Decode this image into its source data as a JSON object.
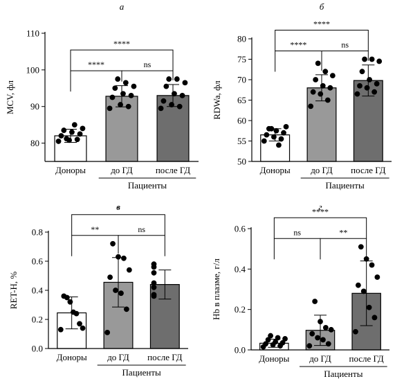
{
  "chart_data": [
    {
      "type": "bar",
      "panel_label": "а",
      "ylabel": "MCV, фл",
      "ylim": [
        75,
        110
      ],
      "yticks": [
        80,
        90,
        100,
        110
      ],
      "categories": [
        "Доноры",
        "до ГД",
        "после ГД"
      ],
      "group_label": "Пациенты",
      "values": [
        82,
        92.8,
        93
      ],
      "error": [
        1.8,
        2.9,
        3.0
      ],
      "points": [
        [
          80.5,
          81.0,
          80.8,
          82.0,
          82.5,
          83.0,
          83.5,
          84.0,
          85.0,
          81.2
        ],
        [
          89.5,
          90.0,
          90.5,
          92.5,
          93.0,
          93.5,
          95.0,
          95.5,
          96.5,
          97.5
        ],
        [
          89.5,
          90.0,
          90.5,
          91.5,
          93.0,
          93.5,
          95.5,
          96.5,
          97.5,
          97.5
        ]
      ],
      "bar_colors": [
        "#ffffff",
        "#999999",
        "#6e6e6e"
      ],
      "significance": [
        {
          "from": 0,
          "to": 2,
          "label": "****"
        },
        {
          "from": 0,
          "to": 1,
          "label": "****"
        },
        {
          "from": 1,
          "to": 2,
          "label": "ns"
        }
      ]
    },
    {
      "type": "bar",
      "panel_label": "б",
      "ylabel": "RDWa, фл",
      "ylim": [
        50,
        80
      ],
      "yticks": [
        50,
        55,
        60,
        65,
        70,
        75,
        80
      ],
      "categories": [
        "Доноры",
        "до ГД",
        "после ГД"
      ],
      "group_label": "Пациенты",
      "values": [
        56.5,
        68,
        69.8
      ],
      "error": [
        1.5,
        3.2,
        3.8
      ],
      "points": [
        [
          55.0,
          55.5,
          56.0,
          56.5,
          57.0,
          57.5,
          58.0,
          58.5,
          54.0,
          58.0
        ],
        [
          63.5,
          65.0,
          66.5,
          67.0,
          68.0,
          68.5,
          70.0,
          71.0,
          72.0,
          74.0
        ],
        [
          66.5,
          67.0,
          68.0,
          68.5,
          69.0,
          70.0,
          72.0,
          74.5,
          75.0,
          75.0
        ]
      ],
      "bar_colors": [
        "#ffffff",
        "#999999",
        "#6e6e6e"
      ],
      "significance": [
        {
          "from": 0,
          "to": 2,
          "label": "****"
        },
        {
          "from": 0,
          "to": 1,
          "label": "****"
        },
        {
          "from": 1,
          "to": 2,
          "label": "ns"
        }
      ]
    },
    {
      "type": "bar",
      "panel_label": "в",
      "ylabel": "RET-H, %",
      "ylim": [
        0,
        0.8
      ],
      "yticks": [
        0.0,
        0.2,
        0.4,
        0.6,
        0.8
      ],
      "categories": [
        "Доноры",
        "до ГД",
        "после ГД"
      ],
      "group_label": "Пациенты",
      "values": [
        0.245,
        0.455,
        0.44
      ],
      "error": [
        0.11,
        0.17,
        0.1
      ],
      "points": [
        [
          0.13,
          0.14,
          0.17,
          0.24,
          0.25,
          0.32,
          0.35,
          0.36
        ],
        [
          0.11,
          0.27,
          0.38,
          0.4,
          0.49,
          0.54,
          0.62,
          0.63,
          0.72
        ],
        [
          0.36,
          0.37,
          0.42,
          0.45,
          0.52,
          0.56,
          0.58
        ]
      ],
      "bar_colors": [
        "#ffffff",
        "#999999",
        "#6e6e6e"
      ],
      "significance": [
        {
          "from": 0,
          "to": 2,
          "label": "*"
        },
        {
          "from": 0,
          "to": 1,
          "label": "**"
        },
        {
          "from": 1,
          "to": 2,
          "label": "ns"
        }
      ]
    },
    {
      "type": "bar",
      "panel_label": "г",
      "ylabel": "Hb в плазме, г/л",
      "ylim": [
        0,
        0.6
      ],
      "yticks": [
        0.0,
        0.2,
        0.4,
        0.6
      ],
      "categories": [
        "Доноры",
        "до ГД",
        "после ГД"
      ],
      "group_label": "Пациенты",
      "values": [
        0.033,
        0.097,
        0.28
      ],
      "error": [
        0.02,
        0.075,
        0.16
      ],
      "points": [
        [
          0.015,
          0.02,
          0.025,
          0.03,
          0.035,
          0.04,
          0.05,
          0.055,
          0.06,
          0.07
        ],
        [
          0.02,
          0.03,
          0.05,
          0.06,
          0.08,
          0.1,
          0.11,
          0.14,
          0.24
        ],
        [
          0.09,
          0.16,
          0.21,
          0.29,
          0.32,
          0.36,
          0.42,
          0.45,
          0.51
        ]
      ],
      "bar_colors": [
        "#ffffff",
        "#999999",
        "#6e6e6e"
      ],
      "significance": [
        {
          "from": 0,
          "to": 2,
          "label": "****"
        },
        {
          "from": 0,
          "to": 1,
          "label": "ns"
        },
        {
          "from": 1,
          "to": 2,
          "label": "**"
        }
      ]
    }
  ]
}
